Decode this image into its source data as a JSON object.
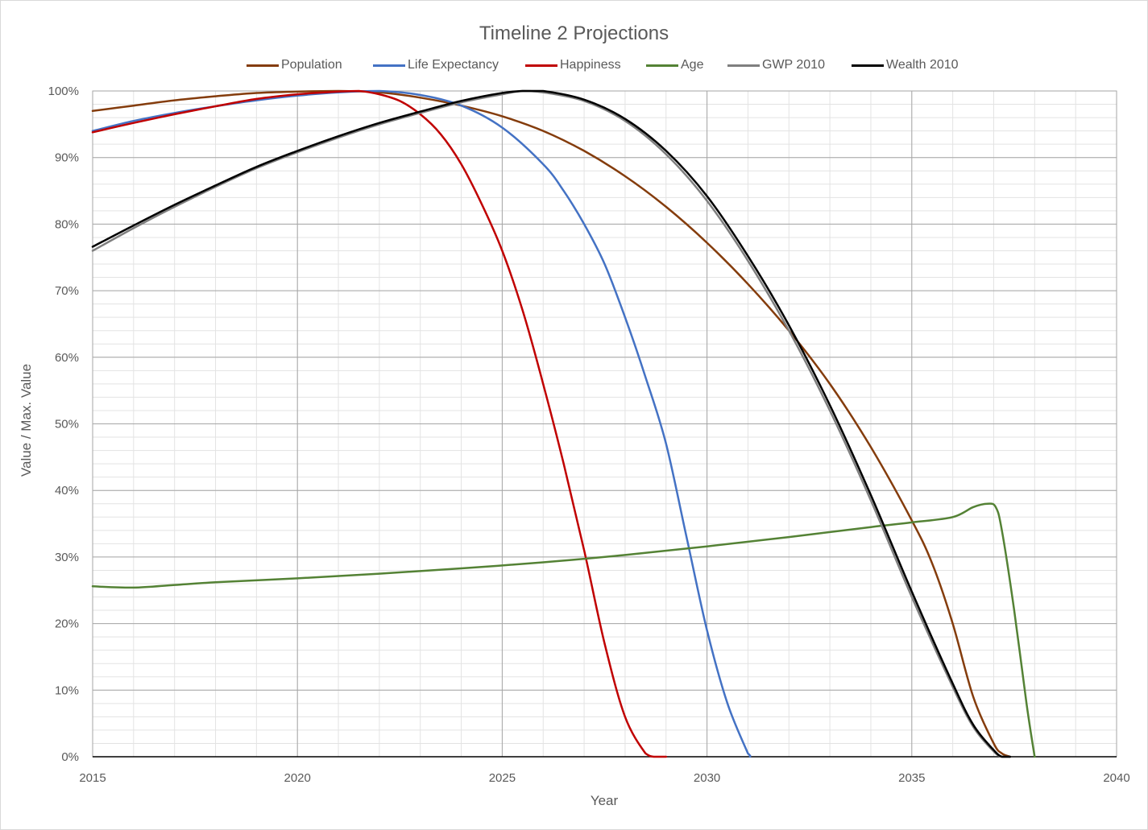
{
  "chart_data": {
    "type": "line",
    "title": "Timeline 2 Projections",
    "xlabel": "Year",
    "ylabel": "Value / Max. Value",
    "xlim": [
      2015,
      2040
    ],
    "ylim": [
      0,
      1
    ],
    "x_ticks": [
      "2015",
      "2020",
      "2025",
      "2030",
      "2035",
      "2040"
    ],
    "y_ticks": [
      "0%",
      "10%",
      "20%",
      "30%",
      "40%",
      "50%",
      "60%",
      "70%",
      "80%",
      "90%",
      "100%"
    ],
    "grid": "major and minor",
    "legend_position": "top",
    "series": [
      {
        "name": "Population",
        "color": "#843c0c",
        "points": [
          [
            2015,
            0.97
          ],
          [
            2016,
            0.978
          ],
          [
            2017,
            0.986
          ],
          [
            2018,
            0.992
          ],
          [
            2019,
            0.997
          ],
          [
            2020,
            0.999
          ],
          [
            2021,
            1.0
          ],
          [
            2022,
            0.998
          ],
          [
            2023,
            0.99
          ],
          [
            2024,
            0.978
          ],
          [
            2025,
            0.962
          ],
          [
            2026,
            0.94
          ],
          [
            2027,
            0.91
          ],
          [
            2028,
            0.872
          ],
          [
            2029,
            0.826
          ],
          [
            2030,
            0.772
          ],
          [
            2031,
            0.71
          ],
          [
            2032,
            0.64
          ],
          [
            2033,
            0.56
          ],
          [
            2034,
            0.465
          ],
          [
            2035,
            0.355
          ],
          [
            2035.5,
            0.29
          ],
          [
            2036,
            0.2
          ],
          [
            2036.5,
            0.09
          ],
          [
            2037,
            0.02
          ],
          [
            2037.2,
            0.005
          ],
          [
            2037.4,
            0
          ]
        ]
      },
      {
        "name": "Life Expectancy",
        "color": "#4472c4",
        "points": [
          [
            2015,
            0.94
          ],
          [
            2016,
            0.955
          ],
          [
            2017,
            0.967
          ],
          [
            2018,
            0.977
          ],
          [
            2019,
            0.986
          ],
          [
            2020,
            0.993
          ],
          [
            2021,
            0.998
          ],
          [
            2022,
            1.0
          ],
          [
            2023,
            0.994
          ],
          [
            2024,
            0.978
          ],
          [
            2025,
            0.945
          ],
          [
            2026,
            0.89
          ],
          [
            2026.5,
            0.85
          ],
          [
            2027,
            0.8
          ],
          [
            2027.5,
            0.74
          ],
          [
            2028,
            0.66
          ],
          [
            2028.5,
            0.57
          ],
          [
            2029,
            0.47
          ],
          [
            2029.5,
            0.33
          ],
          [
            2030,
            0.19
          ],
          [
            2030.5,
            0.08
          ],
          [
            2031,
            0.005
          ],
          [
            2031.05,
            0
          ]
        ]
      },
      {
        "name": "Happiness",
        "color": "#c00000",
        "points": [
          [
            2015,
            0.938
          ],
          [
            2016,
            0.952
          ],
          [
            2017,
            0.965
          ],
          [
            2018,
            0.977
          ],
          [
            2019,
            0.988
          ],
          [
            2020,
            0.995
          ],
          [
            2021,
            0.999
          ],
          [
            2021.5,
            1.0
          ],
          [
            2022,
            0.995
          ],
          [
            2022.5,
            0.985
          ],
          [
            2023,
            0.965
          ],
          [
            2023.5,
            0.935
          ],
          [
            2024,
            0.89
          ],
          [
            2024.5,
            0.83
          ],
          [
            2025,
            0.76
          ],
          [
            2025.5,
            0.67
          ],
          [
            2026,
            0.56
          ],
          [
            2026.5,
            0.44
          ],
          [
            2027,
            0.31
          ],
          [
            2027.5,
            0.17
          ],
          [
            2028,
            0.06
          ],
          [
            2028.5,
            0.005
          ],
          [
            2028.7,
            0
          ],
          [
            2029,
            0
          ]
        ]
      },
      {
        "name": "Age",
        "color": "#548235",
        "points": [
          [
            2015,
            0.256
          ],
          [
            2016,
            0.254
          ],
          [
            2017,
            0.258
          ],
          [
            2018,
            0.262
          ],
          [
            2020,
            0.268
          ],
          [
            2022,
            0.275
          ],
          [
            2024,
            0.283
          ],
          [
            2026,
            0.292
          ],
          [
            2028,
            0.303
          ],
          [
            2030,
            0.316
          ],
          [
            2032,
            0.33
          ],
          [
            2034,
            0.345
          ],
          [
            2035,
            0.352
          ],
          [
            2036,
            0.36
          ],
          [
            2036.5,
            0.375
          ],
          [
            2036.85,
            0.38
          ],
          [
            2037.05,
            0.375
          ],
          [
            2037.2,
            0.34
          ],
          [
            2037.5,
            0.22
          ],
          [
            2037.8,
            0.08
          ],
          [
            2038,
            0.0
          ]
        ]
      },
      {
        "name": "GWP 2010",
        "color": "#7f7f7f",
        "points": [
          [
            2015,
            0.76
          ],
          [
            2016,
            0.794
          ],
          [
            2017,
            0.826
          ],
          [
            2018,
            0.856
          ],
          [
            2019,
            0.884
          ],
          [
            2020,
            0.908
          ],
          [
            2021,
            0.93
          ],
          [
            2022,
            0.95
          ],
          [
            2023,
            0.967
          ],
          [
            2024,
            0.983
          ],
          [
            2025,
            0.995
          ],
          [
            2025.5,
            1.0
          ],
          [
            2026,
            0.998
          ],
          [
            2027,
            0.985
          ],
          [
            2028,
            0.955
          ],
          [
            2029,
            0.905
          ],
          [
            2030,
            0.835
          ],
          [
            2031,
            0.745
          ],
          [
            2032,
            0.64
          ],
          [
            2033,
            0.52
          ],
          [
            2034,
            0.385
          ],
          [
            2035,
            0.24
          ],
          [
            2036,
            0.105
          ],
          [
            2036.5,
            0.045
          ],
          [
            2037,
            0.008
          ],
          [
            2037.2,
            0
          ],
          [
            2037.4,
            0
          ]
        ]
      },
      {
        "name": "Wealth 2010",
        "color": "#000000",
        "points": [
          [
            2015,
            0.766
          ],
          [
            2016,
            0.798
          ],
          [
            2017,
            0.829
          ],
          [
            2018,
            0.858
          ],
          [
            2019,
            0.886
          ],
          [
            2020,
            0.91
          ],
          [
            2021,
            0.932
          ],
          [
            2022,
            0.952
          ],
          [
            2023,
            0.969
          ],
          [
            2024,
            0.985
          ],
          [
            2025,
            0.997
          ],
          [
            2025.5,
            1.0
          ],
          [
            2026,
            1.0
          ],
          [
            2027,
            0.987
          ],
          [
            2028,
            0.958
          ],
          [
            2029,
            0.91
          ],
          [
            2030,
            0.842
          ],
          [
            2031,
            0.752
          ],
          [
            2032,
            0.648
          ],
          [
            2033,
            0.528
          ],
          [
            2034,
            0.393
          ],
          [
            2035,
            0.248
          ],
          [
            2036,
            0.11
          ],
          [
            2036.5,
            0.048
          ],
          [
            2037,
            0.01
          ],
          [
            2037.2,
            0
          ],
          [
            2037.4,
            0
          ]
        ]
      }
    ]
  }
}
